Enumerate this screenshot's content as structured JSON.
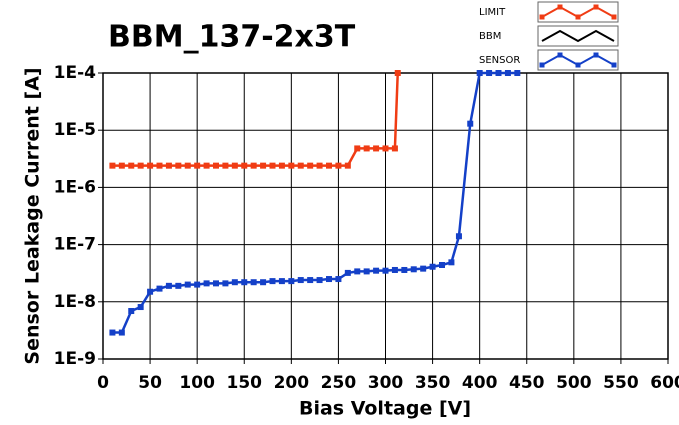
{
  "chart_data": {
    "type": "line",
    "title": "BBM_137-2x3T",
    "x_label": "Bias Voltage [V]",
    "y_label": "Sensor Leakage Current [A]",
    "xlim": [
      0,
      600
    ],
    "ylim": [
      1e-09,
      0.0001
    ],
    "ylog": true,
    "grid": true,
    "legend": "top-right",
    "xticks": [
      0,
      50,
      100,
      150,
      200,
      250,
      300,
      350,
      400,
      450,
      500,
      550,
      600
    ],
    "yticks": [
      {
        "value": 1e-09,
        "label": "1E-9"
      },
      {
        "value": 1e-08,
        "label": "1E-8"
      },
      {
        "value": 1e-07,
        "label": "1E-7"
      },
      {
        "value": 1e-06,
        "label": "1E-6"
      },
      {
        "value": 1e-05,
        "label": "1E-5"
      },
      {
        "value": 0.0001,
        "label": "1E-4"
      }
    ],
    "series": [
      {
        "name": "LIMIT",
        "color": "#f03c14",
        "x": [
          10,
          20,
          30,
          40,
          50,
          60,
          70,
          80,
          90,
          100,
          110,
          120,
          130,
          140,
          150,
          160,
          170,
          180,
          190,
          200,
          210,
          220,
          230,
          240,
          250,
          260,
          270,
          280,
          290,
          300,
          310,
          313
        ],
        "values": [
          2.4e-06,
          2.4e-06,
          2.4e-06,
          2.4e-06,
          2.4e-06,
          2.4e-06,
          2.4e-06,
          2.4e-06,
          2.4e-06,
          2.4e-06,
          2.4e-06,
          2.4e-06,
          2.4e-06,
          2.4e-06,
          2.4e-06,
          2.4e-06,
          2.4e-06,
          2.4e-06,
          2.4e-06,
          2.4e-06,
          2.4e-06,
          2.4e-06,
          2.4e-06,
          2.4e-06,
          2.4e-06,
          2.4e-06,
          4.8e-06,
          4.8e-06,
          4.8e-06,
          4.8e-06,
          4.8e-06,
          0.0001
        ]
      },
      {
        "name": "BBM",
        "color": "#000000",
        "x": [],
        "values": []
      },
      {
        "name": "SENSOR",
        "color": "#1440c8",
        "x": [
          10,
          20,
          30,
          40,
          50,
          60,
          70,
          80,
          90,
          100,
          110,
          120,
          130,
          140,
          150,
          160,
          170,
          180,
          190,
          200,
          210,
          220,
          230,
          240,
          250,
          260,
          270,
          280,
          290,
          300,
          310,
          320,
          330,
          340,
          350,
          360,
          370,
          378,
          390,
          400,
          410,
          420,
          430,
          440
        ],
        "values": [
          2.9e-09,
          2.9e-09,
          6.9e-09,
          8.1e-09,
          1.5e-08,
          1.7e-08,
          1.9e-08,
          1.9e-08,
          2e-08,
          2e-08,
          2.1e-08,
          2.1e-08,
          2.1e-08,
          2.2e-08,
          2.2e-08,
          2.2e-08,
          2.2e-08,
          2.3e-08,
          2.3e-08,
          2.3e-08,
          2.4e-08,
          2.4e-08,
          2.4e-08,
          2.5e-08,
          2.5e-08,
          3.2e-08,
          3.4e-08,
          3.4e-08,
          3.5e-08,
          3.5e-08,
          3.6e-08,
          3.6e-08,
          3.7e-08,
          3.8e-08,
          4.1e-08,
          4.4e-08,
          4.9e-08,
          1.4e-07,
          1.3e-05,
          0.0001,
          0.0001,
          0.0001,
          0.0001,
          0.0001
        ]
      }
    ]
  }
}
